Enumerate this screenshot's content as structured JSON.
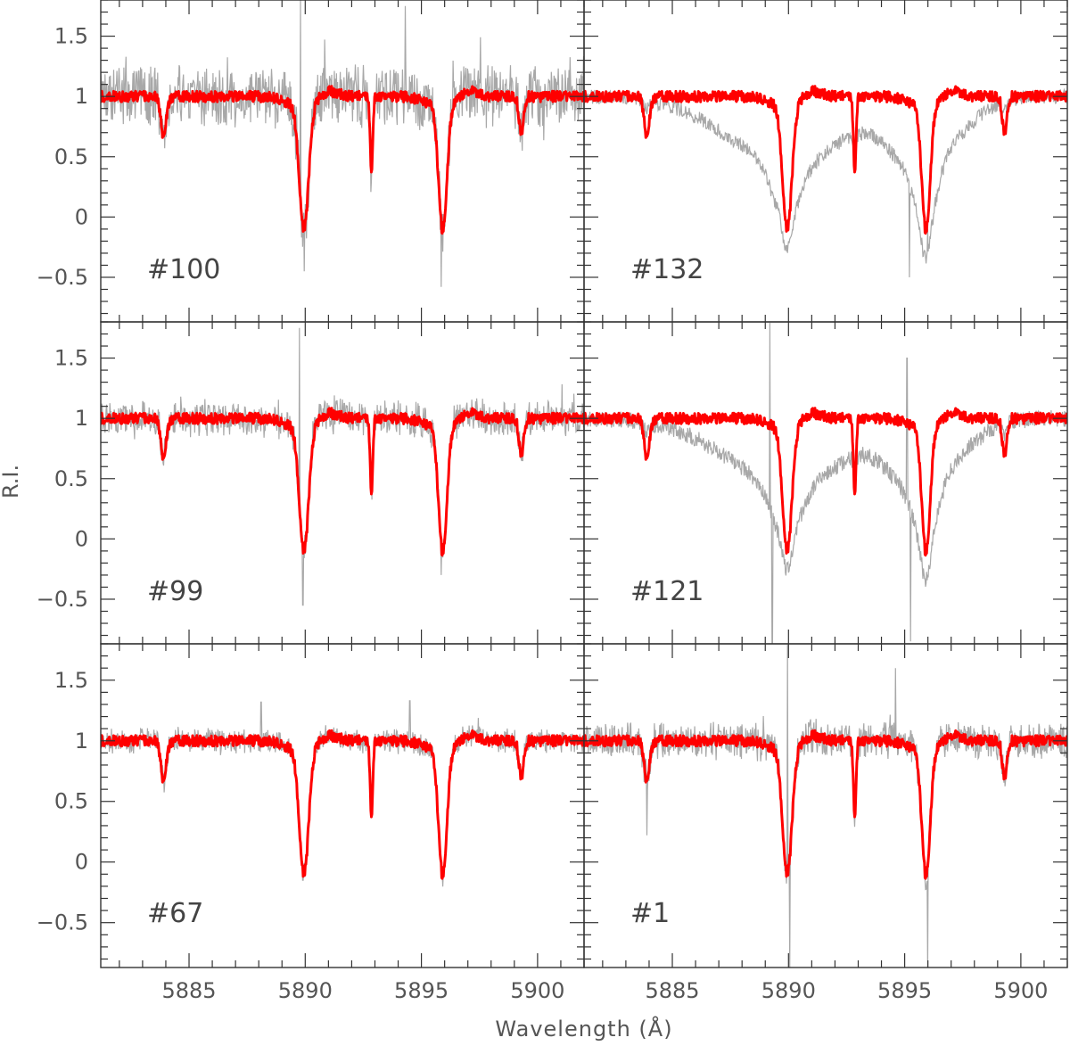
{
  "chart_data": {
    "type": "line",
    "layout": "3x2 grid of spectral panels sharing axes",
    "xlabel": "Wavelength (Å)",
    "ylabel": "R.I.",
    "xlim": [
      5881.2,
      5902.0
    ],
    "ylim": [
      -0.87,
      1.8
    ],
    "x_ticks": [
      5885,
      5890,
      5895,
      5900
    ],
    "y_ticks": [
      -0.5,
      0,
      0.5,
      1,
      1.5
    ],
    "y_tick_labels": [
      "−0.5",
      "0",
      "0.5",
      "1",
      "1.5"
    ],
    "grid": false,
    "legend": "none",
    "colors": {
      "template": "#ff0000",
      "observed": "#a8a8a8",
      "frame": "#333333"
    },
    "template_features": [
      {
        "center": 5883.9,
        "depth": 0.32,
        "width": 0.12
      },
      {
        "center": 5889.95,
        "depth": 1.02,
        "width": 0.2
      },
      {
        "center": 5892.85,
        "depth": 0.6,
        "width": 0.06
      },
      {
        "center": 5895.92,
        "depth": 1.04,
        "width": 0.18
      },
      {
        "center": 5899.3,
        "depth": 0.3,
        "width": 0.1
      }
    ],
    "panels": [
      {
        "label": "#100",
        "row": 0,
        "col": 0,
        "observed_shape": "noisy",
        "observed_noise": 0.22,
        "spikes": [
          [
            5889.8,
            1.8
          ],
          [
            5889.95,
            -0.45
          ],
          [
            5894.3,
            1.75
          ],
          [
            5895.85,
            -0.58
          ]
        ]
      },
      {
        "label": "#132",
        "row": 0,
        "col": 1,
        "observed_shape": "broad",
        "observed_noise": 0.06,
        "spikes": [
          [
            5890.0,
            -0.2
          ],
          [
            5895.2,
            -0.5
          ],
          [
            5896.0,
            -0.1
          ]
        ]
      },
      {
        "label": "#99",
        "row": 1,
        "col": 0,
        "observed_shape": "noisy",
        "observed_noise": 0.12,
        "spikes": [
          [
            5889.75,
            1.75
          ],
          [
            5889.9,
            -0.55
          ],
          [
            5895.85,
            -0.3
          ]
        ]
      },
      {
        "label": "#121",
        "row": 1,
        "col": 1,
        "observed_shape": "broad",
        "observed_noise": 0.07,
        "spikes": [
          [
            5889.2,
            1.8
          ],
          [
            5889.3,
            -0.87
          ],
          [
            5895.1,
            1.5
          ],
          [
            5895.25,
            -0.85
          ]
        ]
      },
      {
        "label": "#67",
        "row": 2,
        "col": 0,
        "observed_shape": "noisy",
        "observed_noise": 0.07,
        "spikes": [
          [
            5888.1,
            1.32
          ],
          [
            5889.9,
            -0.15
          ],
          [
            5894.5,
            1.33
          ]
        ]
      },
      {
        "label": "#1",
        "row": 2,
        "col": 1,
        "observed_shape": "noisy",
        "observed_noise": 0.12,
        "spikes": [
          [
            5889.95,
            1.8
          ],
          [
            5890.05,
            -0.87
          ],
          [
            5894.6,
            1.6
          ],
          [
            5896.0,
            -0.87
          ],
          [
            5883.9,
            0.22
          ]
        ]
      }
    ]
  }
}
